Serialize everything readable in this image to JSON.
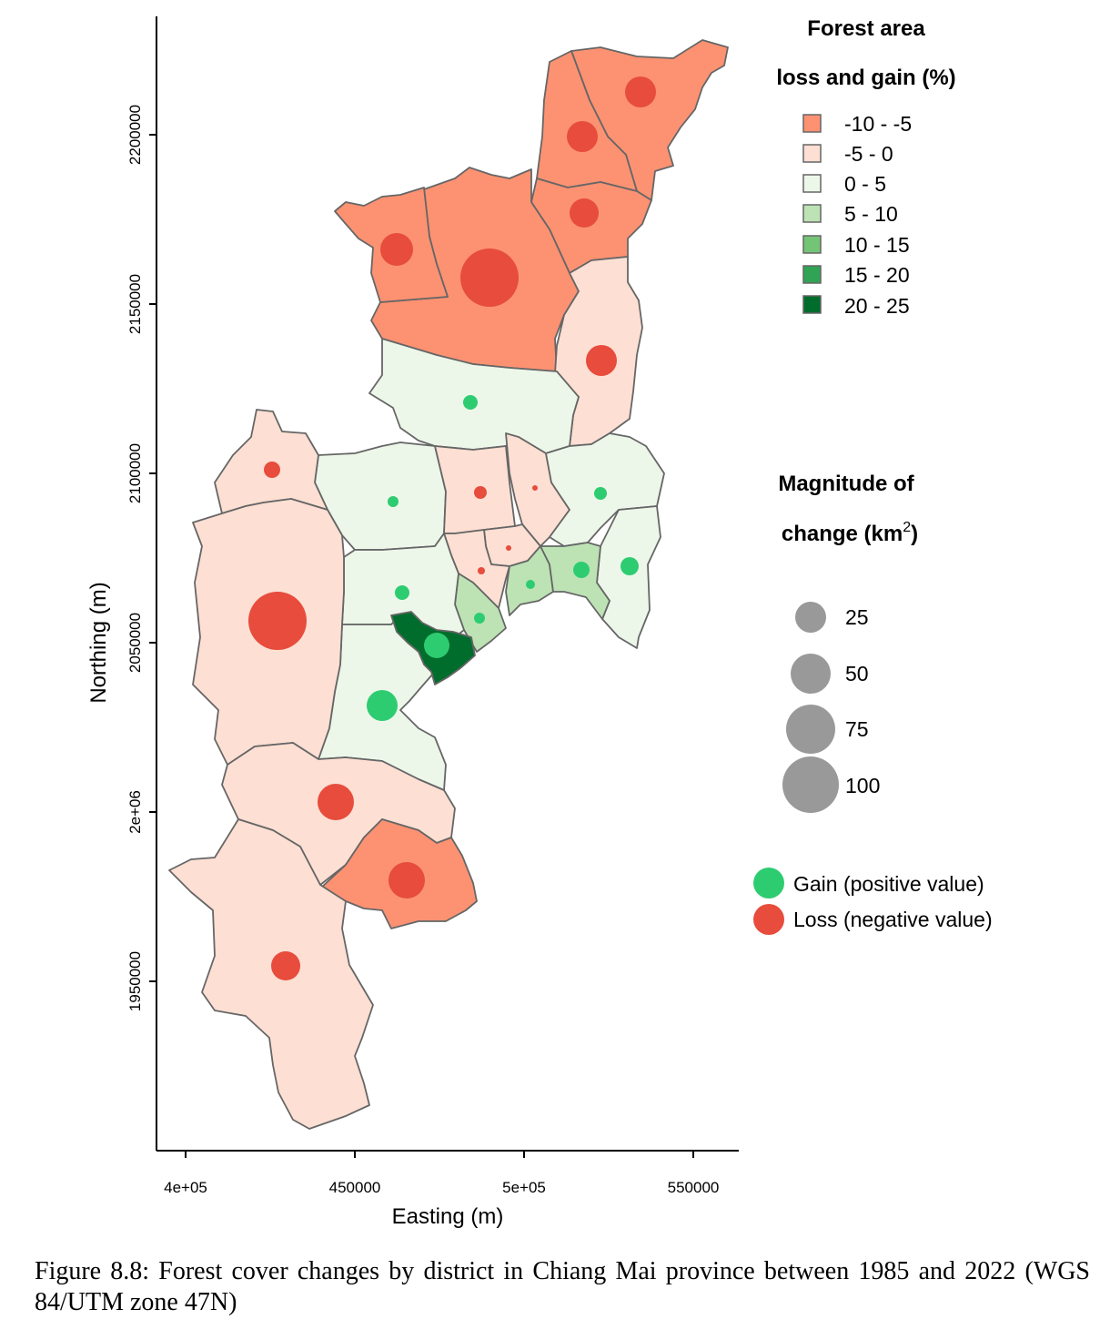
{
  "map": {
    "x_axis": {
      "label": "Easting (m)",
      "ticks": [
        {
          "value": 400000,
          "label": "4e+05"
        },
        {
          "value": 450000,
          "label": "450000"
        },
        {
          "value": 500000,
          "label": "5e+05"
        },
        {
          "value": 550000,
          "label": "550000"
        }
      ]
    },
    "y_axis": {
      "label": "Northing (m)",
      "ticks": [
        {
          "value": 2200000,
          "label": "2200000"
        },
        {
          "value": 2150000,
          "label": "2150000"
        },
        {
          "value": 2100000,
          "label": "2100000"
        },
        {
          "value": 2050000,
          "label": "2050000"
        },
        {
          "value": 2000000,
          "label": "2e+06"
        },
        {
          "value": 1950000,
          "label": "1950000"
        }
      ]
    },
    "colors": {
      "c1": "#fc9272",
      "c2": "#fddfd3",
      "c3": "#edf7e9",
      "c4": "#bde3b5",
      "c5": "#74c476",
      "c6": "#31a354",
      "c7": "#006d2c",
      "gain": "#2ecc71",
      "loss": "#e74c3c",
      "size_key": "#999999"
    }
  },
  "legend_fill": {
    "title_line1": "Forest area",
    "title_line2": "loss and gain (%)",
    "items": [
      {
        "label": "-10 - -5",
        "color": "#fc9272"
      },
      {
        "label": "-5 - 0",
        "color": "#fddfd3"
      },
      {
        "label": "0 - 5",
        "color": "#edf7e9"
      },
      {
        "label": "5 - 10",
        "color": "#bde3b5"
      },
      {
        "label": "10 - 15",
        "color": "#74c476"
      },
      {
        "label": "15 - 20",
        "color": "#31a354"
      },
      {
        "label": "20 - 25",
        "color": "#006d2c"
      }
    ]
  },
  "legend_size": {
    "title_line1": "Magnitude of",
    "title_line2": "change (km",
    "title_sup": "2",
    "title_close": ")",
    "items": [
      {
        "value": 25,
        "label": "25"
      },
      {
        "value": 50,
        "label": "50"
      },
      {
        "value": 75,
        "label": "75"
      },
      {
        "value": 100,
        "label": "100"
      }
    ]
  },
  "legend_sign": {
    "items": [
      {
        "label": "Gain (positive value)",
        "color": "#2ecc71"
      },
      {
        "label": "Loss (negative value)",
        "color": "#e74c3c"
      }
    ]
  },
  "caption": "Figure 8.8: Forest cover changes by district in Chiang Mai province between 1985 and 2022 (WGS 84/UTM zone 47N)"
}
